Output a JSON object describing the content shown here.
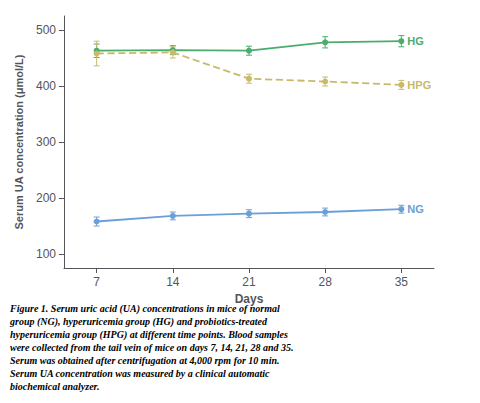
{
  "chart_data": {
    "type": "line",
    "x": [
      7,
      14,
      21,
      28,
      35
    ],
    "series": [
      {
        "name": "HG",
        "color": "#4aad6e",
        "line_style": "solid",
        "marker": "circle",
        "values": [
          463,
          464,
          463,
          478,
          480
        ],
        "errors": [
          12,
          8,
          8,
          10,
          10
        ]
      },
      {
        "name": "HPG",
        "color": "#c8ba6a",
        "line_style": "dashed",
        "marker": "circle",
        "values": [
          458,
          460,
          413,
          408,
          402
        ],
        "errors": [
          22,
          10,
          8,
          8,
          8
        ]
      },
      {
        "name": "NG",
        "color": "#6a9fd8",
        "line_style": "solid",
        "marker": "circle",
        "values": [
          158,
          168,
          172,
          175,
          180
        ],
        "errors": [
          8,
          7,
          7,
          7,
          7
        ]
      }
    ],
    "x_label": "Days",
    "y_label": "Serum UA concentration (μmol/L)",
    "xlim": [
      4,
      38
    ],
    "xticks": [
      7,
      14,
      21,
      28,
      35
    ],
    "ylim": [
      75,
      525
    ],
    "yticks": [
      100,
      200,
      300,
      400,
      500
    ],
    "grid": false,
    "annotations": [
      {
        "text": "Figure 1. Serum uric acid (UA) concentrations in mice of normal\ngroup (NG), hyperuricemia group (HG) and probiotics-treated\nhyperuricemia group (HPG) at different time points. Blood samples\nwere collected from the tail vein of mice on days 7, 14, 21, 28 and 35.\nSerum was obtained after centrifugation at 4,000 rpm for 10 min.\nSerum UA concentration was measured by a clinical automatic\nbiochemical analyzer."
      }
    ]
  }
}
